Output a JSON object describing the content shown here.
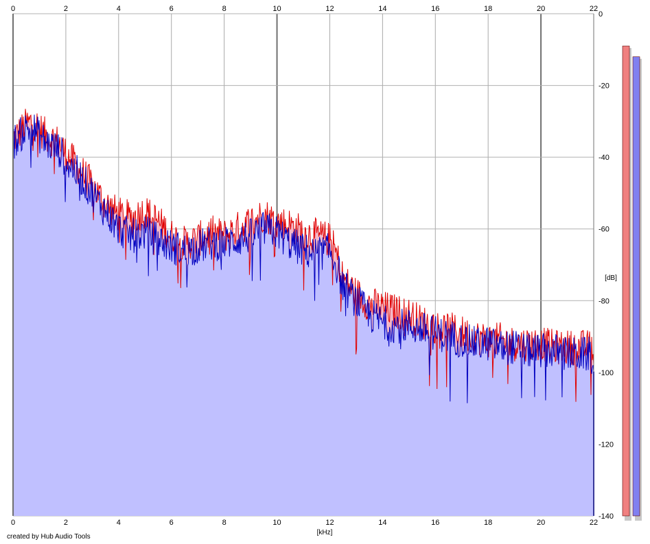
{
  "chart_data": {
    "type": "area",
    "title": "",
    "xlabel": "[kHz]",
    "ylabel": "[dB]",
    "xlim": [
      0,
      22
    ],
    "ylim": [
      -140,
      0
    ],
    "x_ticks": [
      0,
      2,
      4,
      6,
      8,
      10,
      12,
      14,
      16,
      18,
      20,
      22
    ],
    "y_ticks": [
      0,
      -20,
      -40,
      -60,
      -80,
      -100,
      -120,
      -140
    ],
    "x_tick_labels": [
      "0",
      "2",
      "4",
      "6",
      "8",
      "10",
      "12",
      "14",
      "16",
      "18",
      "20",
      "22"
    ],
    "y_tick_labels": [
      "0",
      "-20",
      "-40",
      "-60",
      "-80",
      "-100",
      "-120",
      "-140"
    ],
    "grid": true,
    "series": [
      {
        "color": "#e00000",
        "fill": "#f4b8c8",
        "x": [
          0,
          0.25,
          0.5,
          0.75,
          1,
          1.25,
          1.5,
          1.75,
          2,
          2.5,
          3,
          3.5,
          4,
          4.5,
          5,
          5.5,
          6,
          6.5,
          7,
          7.5,
          8,
          8.5,
          9,
          9.5,
          10,
          10.5,
          11,
          11.5,
          12,
          12.25,
          12.5,
          13,
          13.5,
          14,
          14.5,
          15,
          15.5,
          16,
          16.5,
          17,
          17.5,
          18,
          18.5,
          19,
          19.5,
          20,
          20.5,
          21,
          21.5,
          22
        ],
        "values": [
          -35,
          -33,
          -31,
          -30,
          -32,
          -34,
          -35,
          -36,
          -39,
          -43,
          -48,
          -53,
          -56,
          -57,
          -55,
          -58,
          -62,
          -64,
          -63,
          -61,
          -62,
          -60,
          -58,
          -56,
          -58,
          -59,
          -61,
          -62,
          -63,
          -67,
          -74,
          -78,
          -81,
          -82,
          -83,
          -84,
          -86,
          -87,
          -88,
          -89,
          -90,
          -91,
          -91,
          -92,
          -92,
          -92,
          -93,
          -93,
          -93,
          -93
        ]
      },
      {
        "color": "#0000c0",
        "fill": "#c0c0ff",
        "x": [
          0,
          0.25,
          0.5,
          0.75,
          1,
          1.25,
          1.5,
          1.75,
          2,
          2.5,
          3,
          3.5,
          4,
          4.5,
          5,
          5.5,
          6,
          6.5,
          7,
          7.5,
          8,
          8.5,
          9,
          9.5,
          10,
          10.5,
          11,
          11.5,
          12,
          12.25,
          12.5,
          13,
          13.5,
          14,
          14.5,
          15,
          15.5,
          16,
          16.5,
          17,
          17.5,
          18,
          18.5,
          19,
          19.5,
          20,
          20.5,
          21,
          21.5,
          22
        ],
        "values": [
          -36,
          -34,
          -32,
          -32,
          -34,
          -36,
          -37,
          -38,
          -41,
          -45,
          -50,
          -55,
          -60,
          -62,
          -61,
          -63,
          -65,
          -66,
          -65,
          -64,
          -64,
          -63,
          -62,
          -60,
          -61,
          -64,
          -66,
          -67,
          -66,
          -70,
          -76,
          -80,
          -84,
          -86,
          -87,
          -87,
          -88,
          -89,
          -90,
          -91,
          -92,
          -92,
          -93,
          -93,
          -94,
          -94,
          -94,
          -95,
          -95,
          -95
        ]
      }
    ],
    "level_bars": [
      {
        "color": "#f08080",
        "value": -9
      },
      {
        "color": "#8080f0",
        "value": -12
      }
    ]
  },
  "footer": {
    "credit": "created by Hub Audio Tools"
  }
}
